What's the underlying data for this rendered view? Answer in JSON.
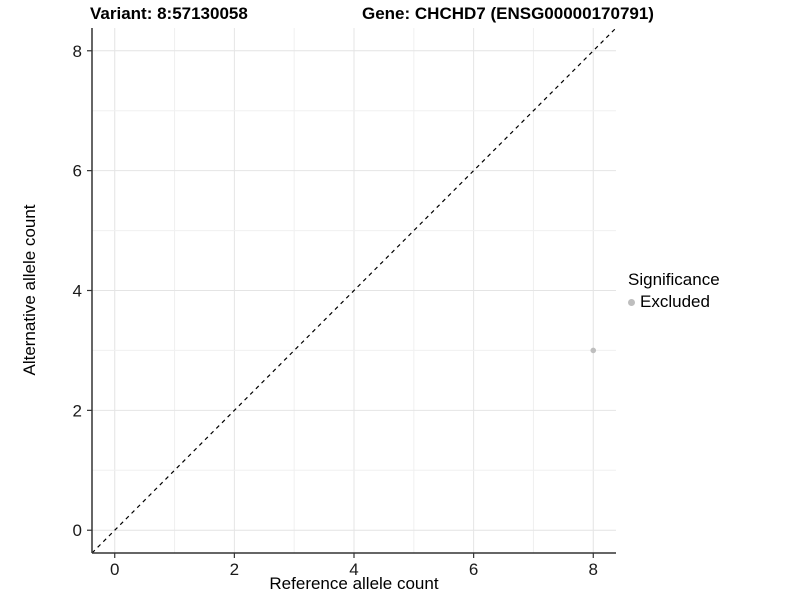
{
  "chart_data": {
    "type": "scatter",
    "title_left": "Variant: 8:57130058",
    "title_right": "Gene: CHCHD7 (ENSG00000170791)",
    "xlabel": "Reference allele count",
    "ylabel": "Alternative allele count",
    "xlim": [
      -0.38,
      8.38
    ],
    "ylim": [
      -0.38,
      8.38
    ],
    "xticks": [
      0,
      2,
      4,
      6,
      8
    ],
    "yticks": [
      0,
      2,
      4,
      6,
      8
    ],
    "minor_grid_step": 1,
    "grid": true,
    "points": [
      {
        "x": 8,
        "y": 3,
        "series": "Excluded"
      }
    ],
    "reference_line": {
      "kind": "identity",
      "style": "dashed",
      "color": "#000000"
    },
    "legend": {
      "title": "Significance",
      "position": "right",
      "entries": [
        {
          "label": "Excluded",
          "color": "#bebebe"
        }
      ]
    },
    "colors": {
      "point": "#bebebe",
      "axis_line": "#333333",
      "tick_mark": "#333333",
      "tick_label": "#1a1a1a",
      "grid_major": "#e4e4e4",
      "grid_minor": "#f0f0f0",
      "background": "#ffffff"
    }
  }
}
